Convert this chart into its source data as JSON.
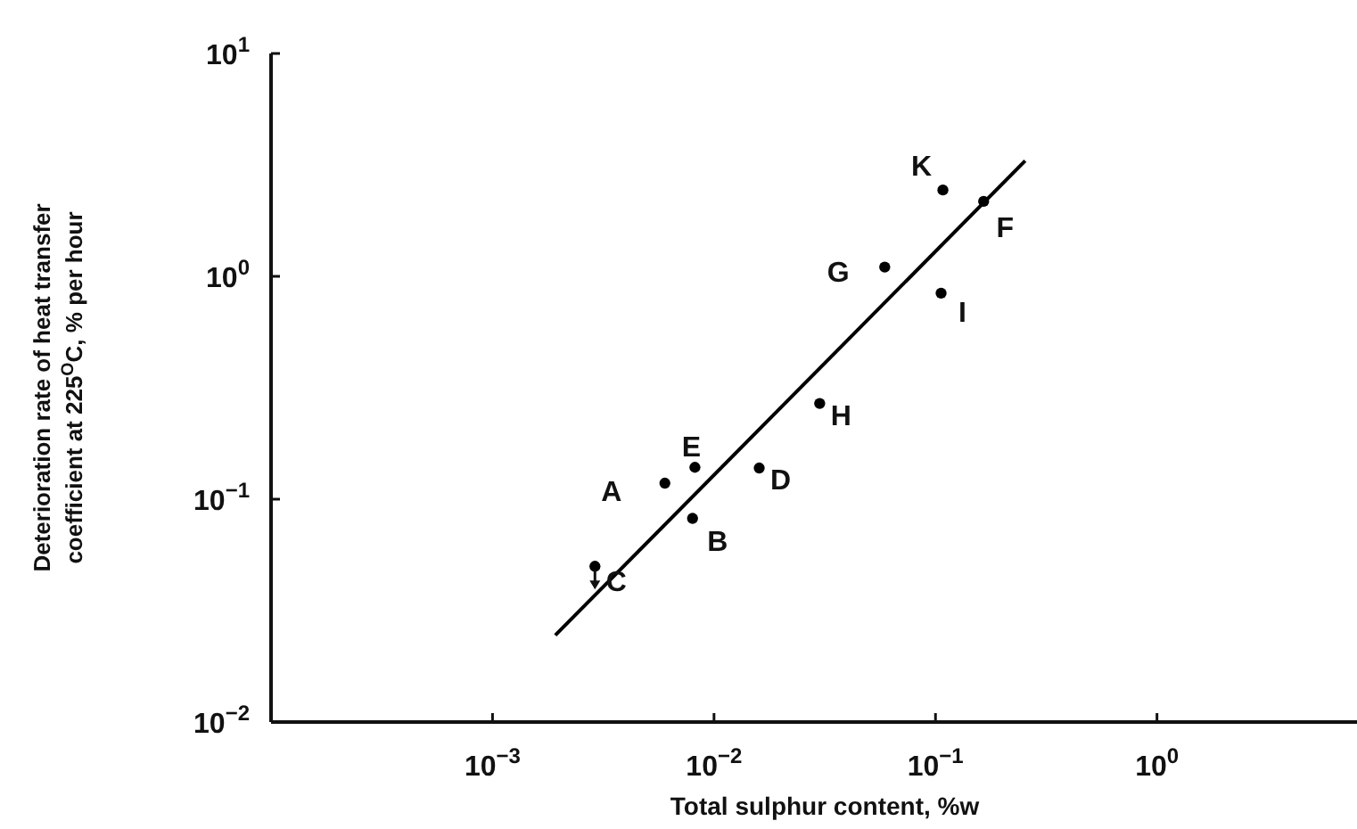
{
  "chart_data": {
    "type": "scatter",
    "xlabel": "Total sulphur content, %w",
    "ylabel": "Deterioration rate of heat transfer coefficient at 225$^{O}$C, % per hour",
    "log": "xy",
    "xlim": [
      0.0001,
      8
    ],
    "ylim": [
      0.01,
      10
    ],
    "xticks": [
      {
        "value": 0.001,
        "label": "10$^{−3}$"
      },
      {
        "value": 0.01,
        "label": "10$^{−2}$"
      },
      {
        "value": 0.1,
        "label": "10$^{−1}$"
      },
      {
        "value": 1,
        "label": "10$^{0}$"
      }
    ],
    "yticks": [
      {
        "value": 0.01,
        "label": "10$^{−2}$"
      },
      {
        "value": 0.1,
        "label": "10$^{−1}$"
      },
      {
        "value": 1,
        "label": "10$^{0}$"
      },
      {
        "value": 10,
        "label": "10$^{1}$"
      }
    ],
    "series": [
      {
        "color": "#000000",
        "marker": "circle",
        "x": [
          0.006,
          0.008,
          0.0029,
          0.016,
          0.0082,
          0.165,
          0.059,
          0.03,
          0.106,
          0.108
        ],
        "values": [
          0.118,
          0.082,
          0.05,
          0.138,
          0.139,
          2.17,
          1.1,
          0.269,
          0.84,
          2.44
        ]
      },
      {
        "type": "line",
        "color": "#000000",
        "marker": "none",
        "x": [
          0.00192,
          0.254
        ],
        "values": [
          0.0245,
          3.3
        ]
      }
    ],
    "annotations": [
      {
        "text": "A",
        "x": 0.006,
        "y": 0.118
      },
      {
        "text": "B",
        "x": 0.008,
        "y": 0.082
      },
      {
        "text": "C",
        "x": 0.0029,
        "y": 0.05
      },
      {
        "text": "D",
        "x": 0.016,
        "y": 0.138
      },
      {
        "text": "E",
        "x": 0.0082,
        "y": 0.139
      },
      {
        "text": "F",
        "x": 0.165,
        "y": 2.17
      },
      {
        "text": "G",
        "x": 0.059,
        "y": 1.1
      },
      {
        "text": "H",
        "x": 0.03,
        "y": 0.269
      },
      {
        "text": "I",
        "x": 0.106,
        "y": 0.84
      },
      {
        "text": "K",
        "x": 0.108,
        "y": 2.44
      }
    ]
  }
}
